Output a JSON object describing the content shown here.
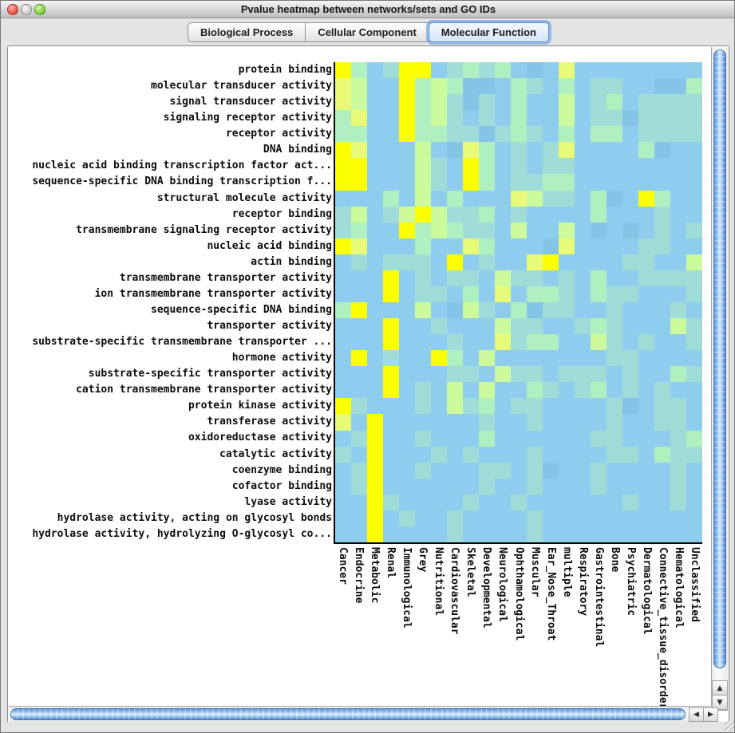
{
  "window": {
    "title": "Pvalue heatmap between networks/sets and GO IDs",
    "buttons": {
      "close": "close",
      "minimize": "minimize",
      "zoom": "zoom"
    }
  },
  "tabs": [
    {
      "label": "Biological Process",
      "selected": false
    },
    {
      "label": "Cellular Component",
      "selected": false
    },
    {
      "label": "Molecular Function",
      "selected": true
    }
  ],
  "icons": {
    "up_arrow": "▲",
    "down_arrow": "▼",
    "left_arrow": "◀",
    "right_arrow": "▶"
  },
  "chart_data": {
    "type": "heatmap",
    "title": "Pvalue heatmap between networks/sets and GO IDs — Molecular Function",
    "xlabel": "",
    "ylabel": "",
    "x_categories": [
      "Cancer",
      "Endocrine",
      "Metabolic",
      "Renal",
      "Immunological",
      "Grey",
      "Nutritional",
      "Cardiovascular",
      "Skeletal",
      "Developmental",
      "Neurological",
      "Ophthamological",
      "Muscular",
      "Ear_Nose_Throat",
      "multiple",
      "Respiratory",
      "Gastrointestinal",
      "Bone",
      "Psychiatric",
      "Dermatological",
      "Connective_tissue_disorder",
      "Hematological",
      "Unclassified"
    ],
    "y_categories": [
      "protein binding",
      "molecular transducer activity",
      "signal transducer activity",
      "signaling receptor activity",
      "receptor activity",
      "DNA binding",
      "nucleic acid binding transcription factor act...",
      "sequence-specific DNA binding transcription f...",
      "structural molecule activity",
      "receptor binding",
      "transmembrane signaling receptor activity",
      "nucleic acid binding",
      "actin binding",
      "transmembrane transporter activity",
      "ion transmembrane transporter activity",
      "sequence-specific DNA binding",
      "transporter activity",
      "substrate-specific transmembrane transporter ...",
      "hormone activity",
      "substrate-specific transporter activity",
      "cation transmembrane transporter activity",
      "protein kinase activity",
      "transferase activity",
      "oxidoreductase activity",
      "catalytic activity",
      "coenzyme binding",
      "cofactor binding",
      "lyase activity",
      "hydrolase activity, acting on glycosyl bonds",
      "hydrolase activity, hydrolyzing O-glycosyl co..."
    ],
    "palette": {
      "Y": "#FBFF00",
      "y": "#E8FB78",
      "g": "#CCFA9C",
      "G": "#B0F0C0",
      "T": "#A0DCD8",
      "B": "#8ECDEE",
      "b": "#84C4E6"
    },
    "palette_meaning": {
      "Y": "most significant (lowest p-value)",
      "y": "very significant",
      "g": "significant",
      "G": "moderately significant",
      "T": "weakly significant",
      "B": "not significant (high p-value)",
      "b": "not significant (high p-value)"
    },
    "grid": [
      "YGBTYYBTGTGBbByBBBBBBBB",
      "ygBBYGgGbbBGTBGBTTBBbbG",
      "ygBBYGgTbTBGBBgBTGBTTTT",
      "GyBBYGgTBTBGBBgBTTbTTTT",
      "GGBBYGGTTbTGTBGBGGBTTTT",
      "YyBBBgBbyGBTBTyBBBBGbBB",
      "YYBBBgTBYGBTBTTBBBBBBBB",
      "YYBBBgTBYGBTTGGBBBBBBBB",
      "BBBGBgBGBBBygTTBGbBYGBB",
      "TgBTgYgTTGBTBBBBGBBBTBB",
      "TGBBYGgGTTBgBBgBbBbBTBT",
      "YyBBBGBByGBBBbyBBBBTTBB",
      "BTBTTTBYBTBByYBBBBTTBBg",
      "BBBYBTBTTBgTTBTBGBBTTTT",
      "BBBYBTTBGByBGGTBGTTBBBT",
      "GYBBBgBbgTBGbTTBBTBBBTB",
      "BBBYBBTBBBgTTBBTGTBBBgT",
      "BBBYBBBTBByTGGBBgTBTBBT",
      "BYBTBBYGBgBBBBBBBTTBBBB",
      "BBBYBBBTTBgTTBTTTBTBBGT",
      "BBBYBTBgBgBBGTBTGBTBTBB",
      "YTBBBTBgTGBTTBBBBTbBTTB",
      "yBYBBBBBBTBBTBBBBTBBTTB",
      "BTYBBTBBBGBBBBBBTTBBBTG",
      "TBYBBBTBTBBBTBBBBTTBGTT",
      "BTYBBTBBBTTBTbBBTBBBBTB",
      "BTYBBBBBBTBBTBBBTBBBBTB",
      "BBYTBBBBTBBTBBBBBBTBBTB",
      "BBYBTBBTBBBBTBBBBBBBBBB",
      "BBYBBBBTBBBBTBBBBBBBBBB"
    ]
  }
}
